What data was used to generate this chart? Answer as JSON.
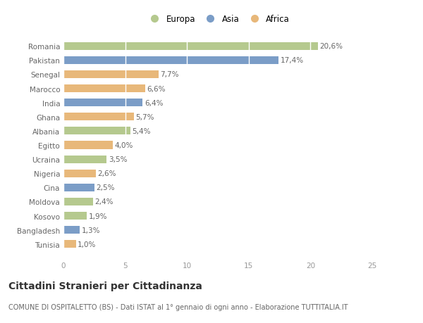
{
  "countries": [
    "Romania",
    "Pakistan",
    "Senegal",
    "Marocco",
    "India",
    "Ghana",
    "Albania",
    "Egitto",
    "Ucraina",
    "Nigeria",
    "Cina",
    "Moldova",
    "Kosovo",
    "Bangladesh",
    "Tunisia"
  ],
  "values": [
    20.6,
    17.4,
    7.7,
    6.6,
    6.4,
    5.7,
    5.4,
    4.0,
    3.5,
    2.6,
    2.5,
    2.4,
    1.9,
    1.3,
    1.0
  ],
  "continents": [
    "Europa",
    "Asia",
    "Africa",
    "Africa",
    "Asia",
    "Africa",
    "Europa",
    "Africa",
    "Europa",
    "Africa",
    "Asia",
    "Europa",
    "Europa",
    "Asia",
    "Africa"
  ],
  "colors": {
    "Europa": "#b5c98e",
    "Asia": "#7b9dc7",
    "Africa": "#e8b87a"
  },
  "legend_order": [
    "Europa",
    "Asia",
    "Africa"
  ],
  "xlim": [
    0,
    25
  ],
  "xticks": [
    0,
    5,
    10,
    15,
    20,
    25
  ],
  "title": "Cittadini Stranieri per Cittadinanza",
  "subtitle": "COMUNE DI OSPITALETTO (BS) - Dati ISTAT al 1° gennaio di ogni anno - Elaborazione TUTTITALIA.IT",
  "background_color": "#ffffff",
  "bar_height": 0.55,
  "label_fontsize": 7.5,
  "ytick_fontsize": 7.5,
  "xtick_fontsize": 7.5,
  "title_fontsize": 10,
  "subtitle_fontsize": 7
}
